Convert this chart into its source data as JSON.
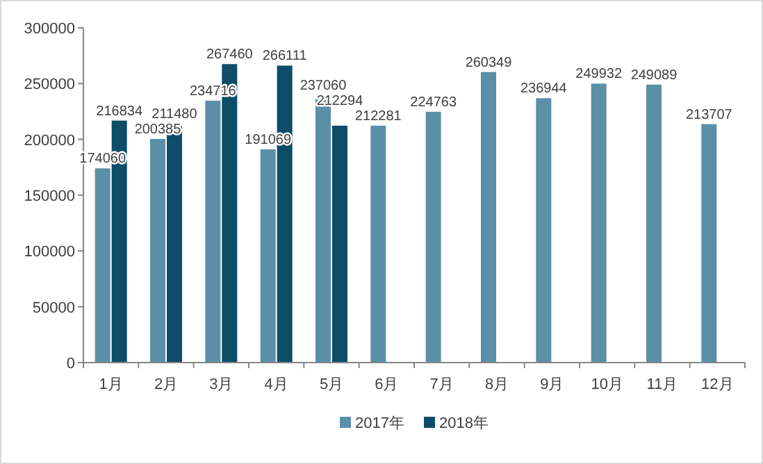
{
  "chart_data": {
    "type": "bar",
    "categories": [
      "1月",
      "2月",
      "3月",
      "4月",
      "5月",
      "6月",
      "7月",
      "8月",
      "9月",
      "10月",
      "11月",
      "12月"
    ],
    "series": [
      {
        "name": "2017年",
        "color": "#5b8fa8",
        "values": [
          174060,
          200385,
          234716,
          191069,
          237060,
          212281,
          224763,
          260349,
          236944,
          249932,
          249089,
          213707
        ]
      },
      {
        "name": "2018年",
        "color": "#0d4d68",
        "values": [
          216834,
          211480,
          267460,
          266111,
          212294,
          null,
          null,
          null,
          null,
          null,
          null,
          null
        ]
      }
    ],
    "ylim": [
      0,
      300000
    ],
    "yticks": [
      0,
      50000,
      100000,
      150000,
      200000,
      250000,
      300000
    ],
    "data_labels": true,
    "legend": "bottom"
  }
}
